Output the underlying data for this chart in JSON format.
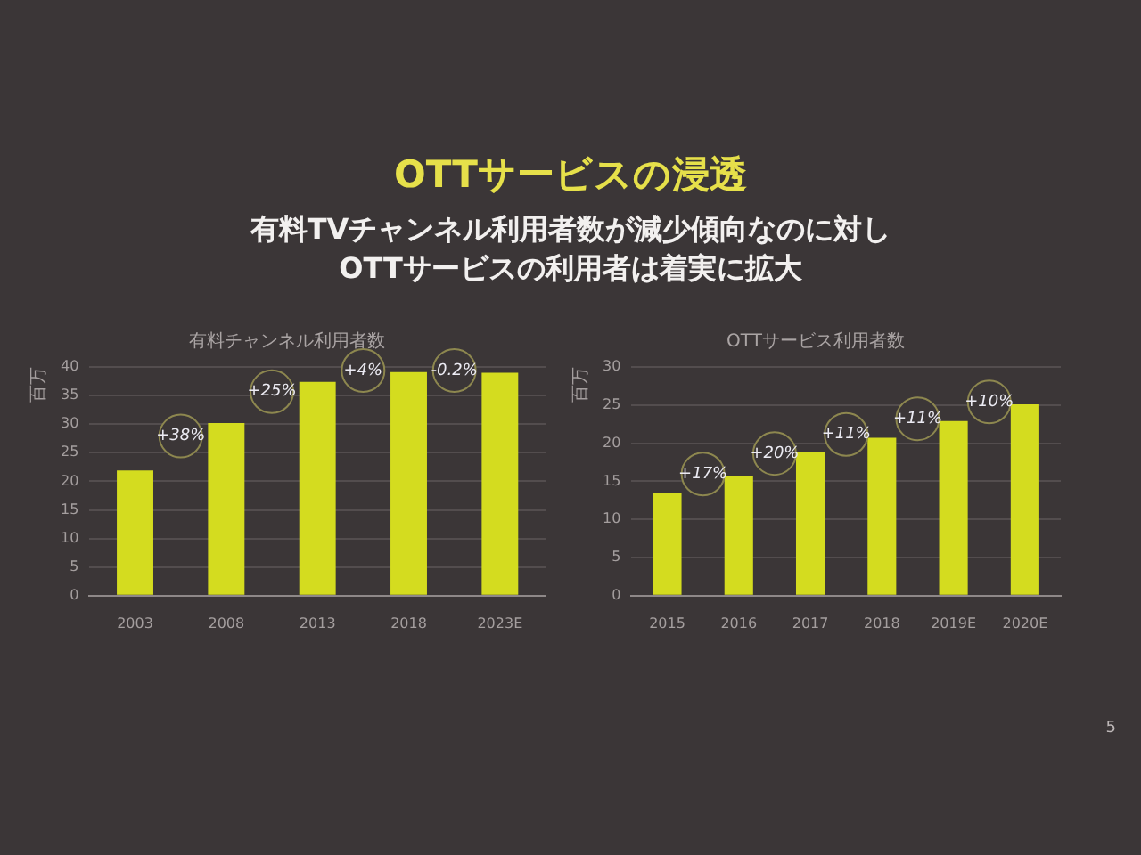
{
  "chart_data": [
    {
      "type": "other",
      "title": "OTTサービスの浸透",
      "subtitle": "有料TVチャンネル利用者数が減少傾向なのに対し\nOTTサービスの利用者は着実に拡大",
      "annotations": [
        "5"
      ]
    },
    {
      "type": "bar",
      "title": "有料チャンネル利用者数",
      "ylabel": "百万",
      "categories": [
        "2003",
        "2008",
        "2013",
        "2018",
        "2023E"
      ],
      "values": [
        21.9,
        30.2,
        37.4,
        39.1,
        39.0
      ],
      "color": "#d4dc1f",
      "ylim": [
        0,
        40
      ],
      "yticks": [
        0,
        5,
        10,
        15,
        20,
        25,
        30,
        35,
        40
      ],
      "grid": "y",
      "annotations": [
        "+38%",
        "+25%",
        "+4%",
        "-0.2%"
      ]
    },
    {
      "type": "bar",
      "title": "OTTサービス利用者数",
      "ylabel": "百万",
      "categories": [
        "2015",
        "2016",
        "2017",
        "2018",
        "2019E",
        "2020E"
      ],
      "values": [
        13.4,
        15.7,
        18.8,
        20.7,
        22.9,
        25.1
      ],
      "color": "#d4dc1f",
      "ylim": [
        0,
        30
      ],
      "yticks": [
        0,
        5,
        10,
        15,
        20,
        25,
        30
      ],
      "grid": "y",
      "annotations": [
        "+17%",
        "+20%",
        "+11%",
        "+11%",
        "+10%"
      ]
    }
  ]
}
